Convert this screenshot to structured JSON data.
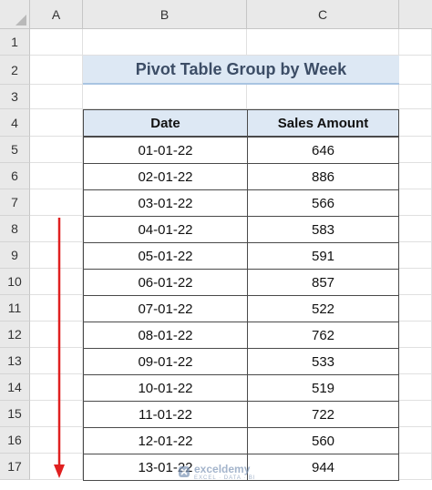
{
  "sheet": {
    "columns": [
      "A",
      "B",
      "C"
    ],
    "rows": [
      "1",
      "2",
      "3",
      "4",
      "5",
      "6",
      "7",
      "8",
      "9",
      "10",
      "11",
      "12",
      "13",
      "14",
      "15",
      "16",
      "17"
    ]
  },
  "title": "Pivot Table Group by Week",
  "table": {
    "headers": [
      "Date",
      "Sales Amount"
    ],
    "rows": [
      [
        "01-01-22",
        "646"
      ],
      [
        "02-01-22",
        "886"
      ],
      [
        "03-01-22",
        "566"
      ],
      [
        "04-01-22",
        "583"
      ],
      [
        "05-01-22",
        "591"
      ],
      [
        "06-01-22",
        "857"
      ],
      [
        "07-01-22",
        "522"
      ],
      [
        "08-01-22",
        "762"
      ],
      [
        "09-01-22",
        "533"
      ],
      [
        "10-01-22",
        "519"
      ],
      [
        "11-01-22",
        "722"
      ],
      [
        "12-01-22",
        "560"
      ],
      [
        "13-01-22",
        "944"
      ]
    ]
  },
  "watermark": {
    "brand": "exceldemy",
    "tagline": "EXCEL · DATA · BI"
  },
  "colors": {
    "header_fill": "#dde8f4",
    "arrow": "#e02020",
    "title_text": "#3c4d66"
  }
}
